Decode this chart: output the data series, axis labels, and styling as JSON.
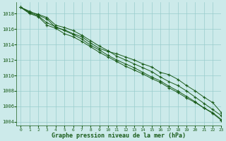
{
  "title": "Graphe pression niveau de la mer (hPa)",
  "background_color": "#cceaea",
  "grid_color": "#99cccc",
  "line_color": "#1a5c1a",
  "marker_color": "#1a5c1a",
  "xlim": [
    -0.5,
    23
  ],
  "ylim": [
    1003.5,
    1019.5
  ],
  "xticks": [
    0,
    1,
    2,
    3,
    4,
    5,
    6,
    7,
    8,
    9,
    10,
    11,
    12,
    13,
    14,
    15,
    16,
    17,
    18,
    19,
    20,
    21,
    22,
    23
  ],
  "yticks": [
    1004,
    1006,
    1008,
    1010,
    1012,
    1014,
    1016,
    1018
  ],
  "series": [
    [
      1018.8,
      1018.3,
      1017.8,
      1017.3,
      1016.2,
      1015.9,
      1015.4,
      1015.0,
      1014.2,
      1013.5,
      1013.1,
      1012.8,
      1012.4,
      1012.0,
      1011.5,
      1011.1,
      1010.4,
      1010.1,
      1009.5,
      1008.7,
      1008.0,
      1007.2,
      1006.5,
      1005.2
    ],
    [
      1018.8,
      1018.0,
      1017.6,
      1016.5,
      1016.1,
      1015.4,
      1015.0,
      1014.4,
      1013.7,
      1013.0,
      1012.4,
      1011.8,
      1011.2,
      1010.7,
      1010.2,
      1009.6,
      1009.1,
      1008.4,
      1007.8,
      1007.1,
      1006.5,
      1005.8,
      1005.2,
      1004.3
    ],
    [
      1018.8,
      1018.1,
      1017.7,
      1016.8,
      1016.3,
      1015.8,
      1015.3,
      1014.7,
      1013.9,
      1013.3,
      1012.6,
      1012.0,
      1011.5,
      1011.0,
      1010.4,
      1009.8,
      1009.3,
      1008.6,
      1008.0,
      1007.3,
      1006.6,
      1005.8,
      1005.1,
      1004.2
    ],
    [
      1018.8,
      1018.2,
      1017.9,
      1017.5,
      1016.5,
      1016.2,
      1015.8,
      1015.2,
      1014.5,
      1013.8,
      1013.2,
      1012.5,
      1012.0,
      1011.5,
      1011.0,
      1010.5,
      1009.8,
      1009.2,
      1008.7,
      1008.0,
      1007.2,
      1006.4,
      1005.6,
      1004.8
    ]
  ]
}
